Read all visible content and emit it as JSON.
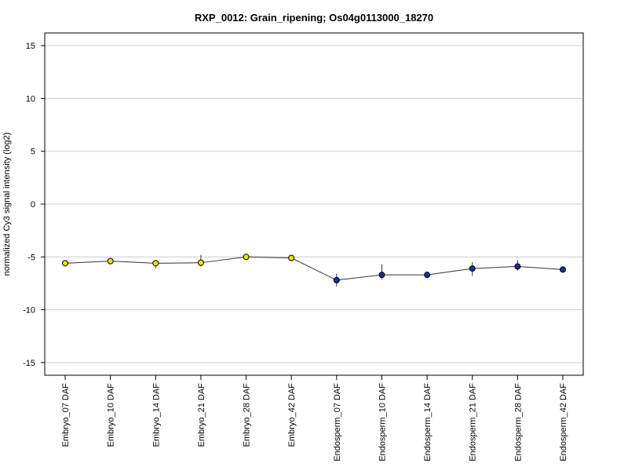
{
  "chart_data": {
    "type": "line",
    "title": "RXP_0012: Grain_ripening; Os04g0113000_18270",
    "xlabel": "",
    "ylabel": "normalized Cy3 signal intensity (log2)",
    "ylim": [
      -16.2,
      16.2
    ],
    "yticks": [
      -15,
      -10,
      -5,
      0,
      5,
      10,
      15
    ],
    "grid": true,
    "categories": [
      "Embryo_07 DAF",
      "Embryo_10 DAF",
      "Embryo_14 DAF",
      "Embryo_21 DAF",
      "Embryo_28 DAF",
      "Embryo_42 DAF",
      "Endosperm_07 DAF",
      "Endosperm_10 DAF",
      "Endosperm_14 DAF",
      "Endosperm_21 DAF",
      "Endosperm_28 DAF",
      "Endosperm_42 DAF"
    ],
    "series": [
      {
        "values": [
          -5.6,
          -5.4,
          -5.6,
          -5.55,
          -5.0,
          -5.1,
          -7.2,
          -6.7,
          -6.7,
          -6.1,
          -5.9,
          -6.2
        ],
        "error_low": [
          -5.8,
          -5.5,
          -6.1,
          -5.9,
          -5.1,
          -5.4,
          -7.8,
          -7.1,
          -7.0,
          -6.8,
          -6.3,
          -6.4
        ],
        "error_high": [
          -5.4,
          -5.25,
          -5.3,
          -4.8,
          -4.9,
          -5.0,
          -6.6,
          -5.7,
          -6.4,
          -5.5,
          -5.3,
          -5.9
        ],
        "point_colors": [
          "#f2e200",
          "#f2e200",
          "#f2e200",
          "#f2e200",
          "#f2e200",
          "#f2e200",
          "#1c2fa6",
          "#1c2fa6",
          "#1c2fa6",
          "#1c2fa6",
          "#1c2fa6",
          "#1c2fa6"
        ],
        "line_color": "#333333"
      }
    ]
  }
}
